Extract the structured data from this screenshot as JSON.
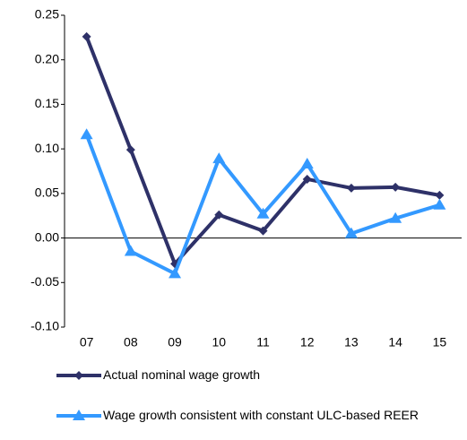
{
  "chart_data": {
    "type": "line",
    "categories": [
      "07",
      "08",
      "09",
      "10",
      "11",
      "12",
      "13",
      "14",
      "15"
    ],
    "series": [
      {
        "name": "Actual nominal wage growth",
        "color": "#2e3168",
        "marker": "diamond",
        "values": [
          0.226,
          0.099,
          -0.029,
          0.026,
          0.008,
          0.066,
          0.056,
          0.057,
          0.048
        ]
      },
      {
        "name": "Wage growth consistent with constant ULC-based REER",
        "color": "#3399ff",
        "marker": "triangle",
        "values": [
          0.116,
          -0.015,
          -0.04,
          0.089,
          0.027,
          0.083,
          0.005,
          0.022,
          0.037
        ]
      }
    ],
    "ylim": [
      -0.1,
      0.25
    ],
    "yticks": [
      {
        "value": -0.1,
        "label": "-0.10"
      },
      -0.05,
      {
        "value": 0.0,
        "label": "0.00"
      },
      0.05,
      {
        "value": 0.1,
        "label": "0.10"
      },
      0.15,
      {
        "value": 0.2,
        "label": "0.20"
      },
      0.25
    ],
    "grid": false,
    "legend": "bottom"
  }
}
